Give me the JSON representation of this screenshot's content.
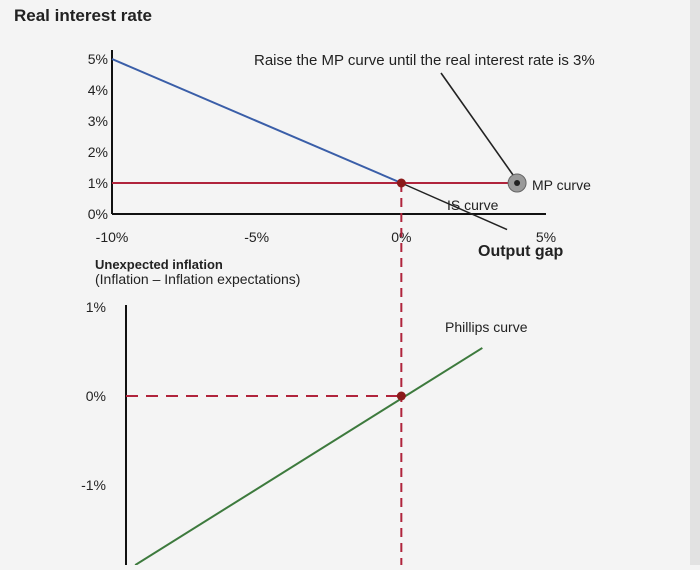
{
  "chart_data": [
    {
      "type": "line",
      "title": "Real interest rate",
      "instruction": "Raise the MP curve until the real interest rate is 3%",
      "xlabel": "Output gap",
      "ylabel": "Real interest rate",
      "x_ticks": [
        "-10%",
        "-5%",
        "0%",
        "5%"
      ],
      "y_ticks": [
        "0%",
        "1%",
        "2%",
        "3%",
        "4%",
        "5%"
      ],
      "xlim": [
        -10,
        5
      ],
      "ylim": [
        0,
        5
      ],
      "series": [
        {
          "name": "IS curve",
          "x": [
            -10,
            0,
            4
          ],
          "y": [
            5,
            1,
            -0.6
          ]
        },
        {
          "name": "MP curve",
          "x": [
            -10,
            4
          ],
          "y": [
            1,
            1
          ]
        }
      ],
      "drag_handle": {
        "series": "MP curve",
        "x": 4,
        "y": 1
      },
      "equilibrium_point": {
        "x": 0,
        "y": 1
      },
      "colors": {
        "is_curve": "#3a5ea8",
        "mp_curve": "#b0243c",
        "handle": "#9a9a9a",
        "point": "#8b1a1a"
      }
    },
    {
      "type": "line",
      "ylabel_title": "Unexpected inflation",
      "ylabel_subtitle": "(Inflation – Inflation expectations)",
      "y_ticks": [
        "1%",
        "0%",
        "-1%"
      ],
      "ylim": [
        -1.9,
        1
      ],
      "xlim": [
        -10,
        5
      ],
      "series": [
        {
          "name": "Phillips curve",
          "x": [
            -9.2,
            2.8
          ],
          "y": [
            -1.9,
            0.54
          ]
        }
      ],
      "equilibrium_point": {
        "x": 0,
        "y": 0
      },
      "colors": {
        "phillips_curve": "#3d7a3d",
        "guide": "#b0243c",
        "point": "#8b1a1a"
      }
    }
  ]
}
